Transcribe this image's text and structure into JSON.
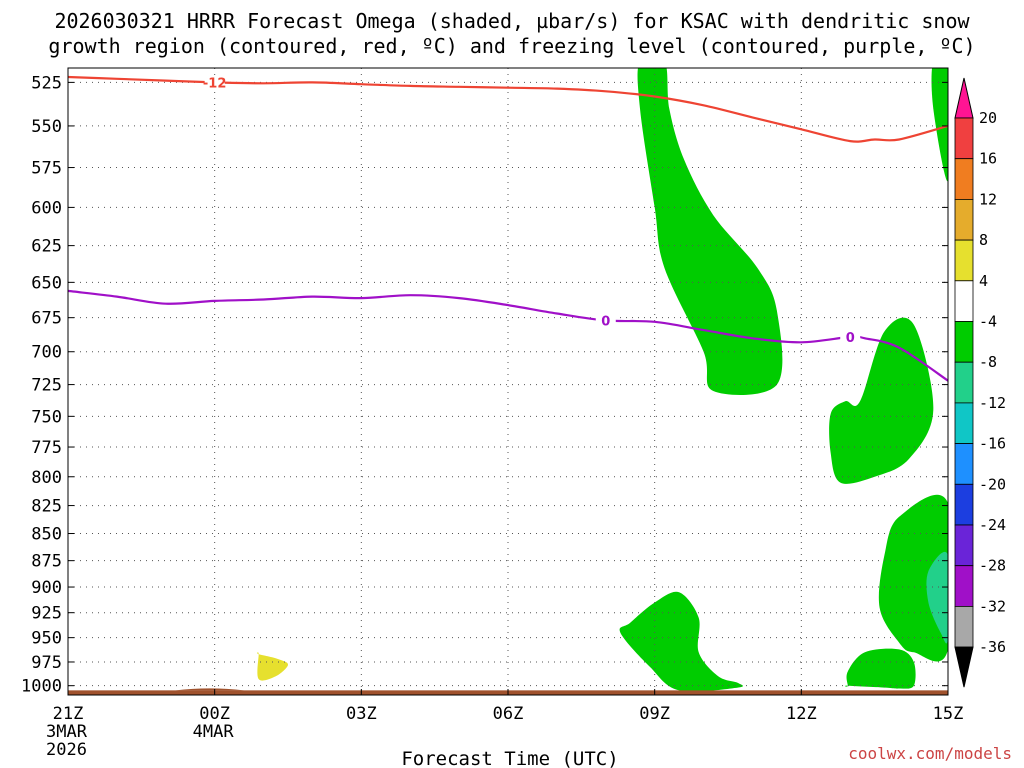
{
  "title_lines": [
    "2026030321 HRRR Forecast Omega (shaded, µbar/s) for KSAC with dendritic snow",
    "growth region (contoured, red, ºC) and freezing level (contoured, purple, ºC)"
  ],
  "xlabel": "Forecast Time (UTC)",
  "credit": "coolwx.com/models",
  "chart_data": {
    "type": "heatmap",
    "y_axis": {
      "quantity": "pressure (mb)",
      "direction": "decreasing upward",
      "ticks": [
        525,
        550,
        575,
        600,
        625,
        650,
        675,
        700,
        725,
        750,
        775,
        800,
        825,
        850,
        875,
        900,
        925,
        950,
        975,
        1000
      ],
      "range": [
        1010,
        517
      ]
    },
    "x_axis": {
      "range_hours": [
        0,
        18
      ],
      "ticks": [
        {
          "h": 0,
          "label": "21Z",
          "sub": [
            "3MAR",
            "2026"
          ]
        },
        {
          "h": 3,
          "label": "00Z",
          "sub": [
            "4MAR"
          ]
        },
        {
          "h": 6,
          "label": "03Z",
          "sub": []
        },
        {
          "h": 9,
          "label": "06Z",
          "sub": []
        },
        {
          "h": 12,
          "label": "09Z",
          "sub": []
        },
        {
          "h": 15,
          "label": "12Z",
          "sub": []
        },
        {
          "h": 18,
          "label": "15Z",
          "sub": []
        }
      ]
    },
    "grid": true,
    "colorbar": {
      "levels": [
        20,
        16,
        12,
        8,
        4,
        -4,
        -8,
        -12,
        -16,
        -20,
        -24,
        -28,
        -32,
        -36
      ],
      "colors": [
        "#ff1493",
        "#f04040",
        "#f07d20",
        "#e5ac2c",
        "#e6e02e",
        "#ffffff",
        "#00cc00",
        "#22d08a",
        "#10c6c6",
        "#1e90ff",
        "#1c3ee0",
        "#6a24d8",
        "#a010c8",
        "#a8a8a8",
        "#000000"
      ]
    },
    "contours": [
      {
        "label": "-12",
        "color": "#ee4433",
        "h": [
          0,
          1,
          2,
          3,
          4,
          5,
          6,
          7,
          8,
          9,
          10,
          11,
          12,
          13,
          14,
          15,
          16,
          16.5,
          17,
          18
        ],
        "p": [
          522,
          523,
          524,
          525,
          525.5,
          525,
          526,
          527,
          527.5,
          528,
          528.5,
          530,
          533,
          538,
          545,
          552,
          559,
          558,
          558,
          550
        ]
      },
      {
        "label": "0",
        "color": "#a010c8",
        "h": [
          0,
          1,
          2,
          3,
          4,
          5,
          6,
          7,
          8,
          9,
          10,
          11,
          12,
          13,
          14,
          15,
          16,
          16.3,
          17,
          18
        ],
        "p": [
          656,
          660,
          665,
          663,
          662,
          660,
          661,
          659,
          661,
          666,
          672,
          677,
          678,
          684,
          690,
          693,
          689,
          690,
          697,
          722
        ]
      }
    ],
    "shaded_regions": [
      {
        "omega": -6,
        "h": [
          11.7,
          12.2,
          12.3,
          12.6,
          13.2,
          14.1,
          14.5,
          14.5,
          13.2,
          13.0,
          12.2,
          12.0,
          11.7
        ],
        "p": [
          513,
          513,
          540,
          570,
          605,
          640,
          670,
          725,
          730,
          700,
          640,
          600,
          540
        ]
      },
      {
        "omega": -6,
        "h": [
          16.2,
          16.7,
          17.3,
          17.7,
          17.2,
          16.5,
          15.8,
          15.6,
          15.6,
          15.9
        ],
        "p": [
          738,
          685,
          680,
          745,
          785,
          800,
          805,
          780,
          748,
          738
        ]
      },
      {
        "omega": -6,
        "h": [
          18.0,
          17.0,
          16.7,
          16.6,
          17.0,
          17.3,
          18.0
        ],
        "p": [
          823,
          835,
          870,
          920,
          955,
          965,
          962
        ]
      },
      {
        "omega": -10,
        "h": [
          18.0,
          17.6,
          17.6,
          17.85,
          18.0
        ],
        "p": [
          870,
          885,
          915,
          945,
          950
        ]
      },
      {
        "omega": -6,
        "h": [
          11.5,
          12.0,
          12.5,
          12.9,
          12.9,
          13.3,
          13.7,
          13.7,
          12.5,
          11.9,
          11.3
        ],
        "p": [
          935,
          915,
          905,
          930,
          965,
          990,
          997,
          1002,
          1005,
          980,
          945
        ]
      },
      {
        "omega": -6,
        "h": [
          15.95,
          16.7,
          17.0,
          17.3,
          17.3,
          17.0,
          16.3,
          15.95,
          15.95
        ],
        "p": [
          1000,
          1002,
          1003,
          1000,
          975,
          962,
          965,
          985,
          1000
        ]
      },
      {
        "omega": -6,
        "h": [
          17.7,
          18.0,
          18.0,
          17.7
        ],
        "p": [
          513,
          513,
          583,
          540
        ]
      },
      {
        "omega": 6,
        "h": [
          3.9,
          4.3,
          4.5,
          4.25,
          3.9,
          3.9
        ],
        "p": [
          967,
          972,
          978,
          990,
          993,
          967
        ]
      }
    ],
    "terrain": {
      "color": "#a0522d",
      "p_top": 1005
    }
  }
}
